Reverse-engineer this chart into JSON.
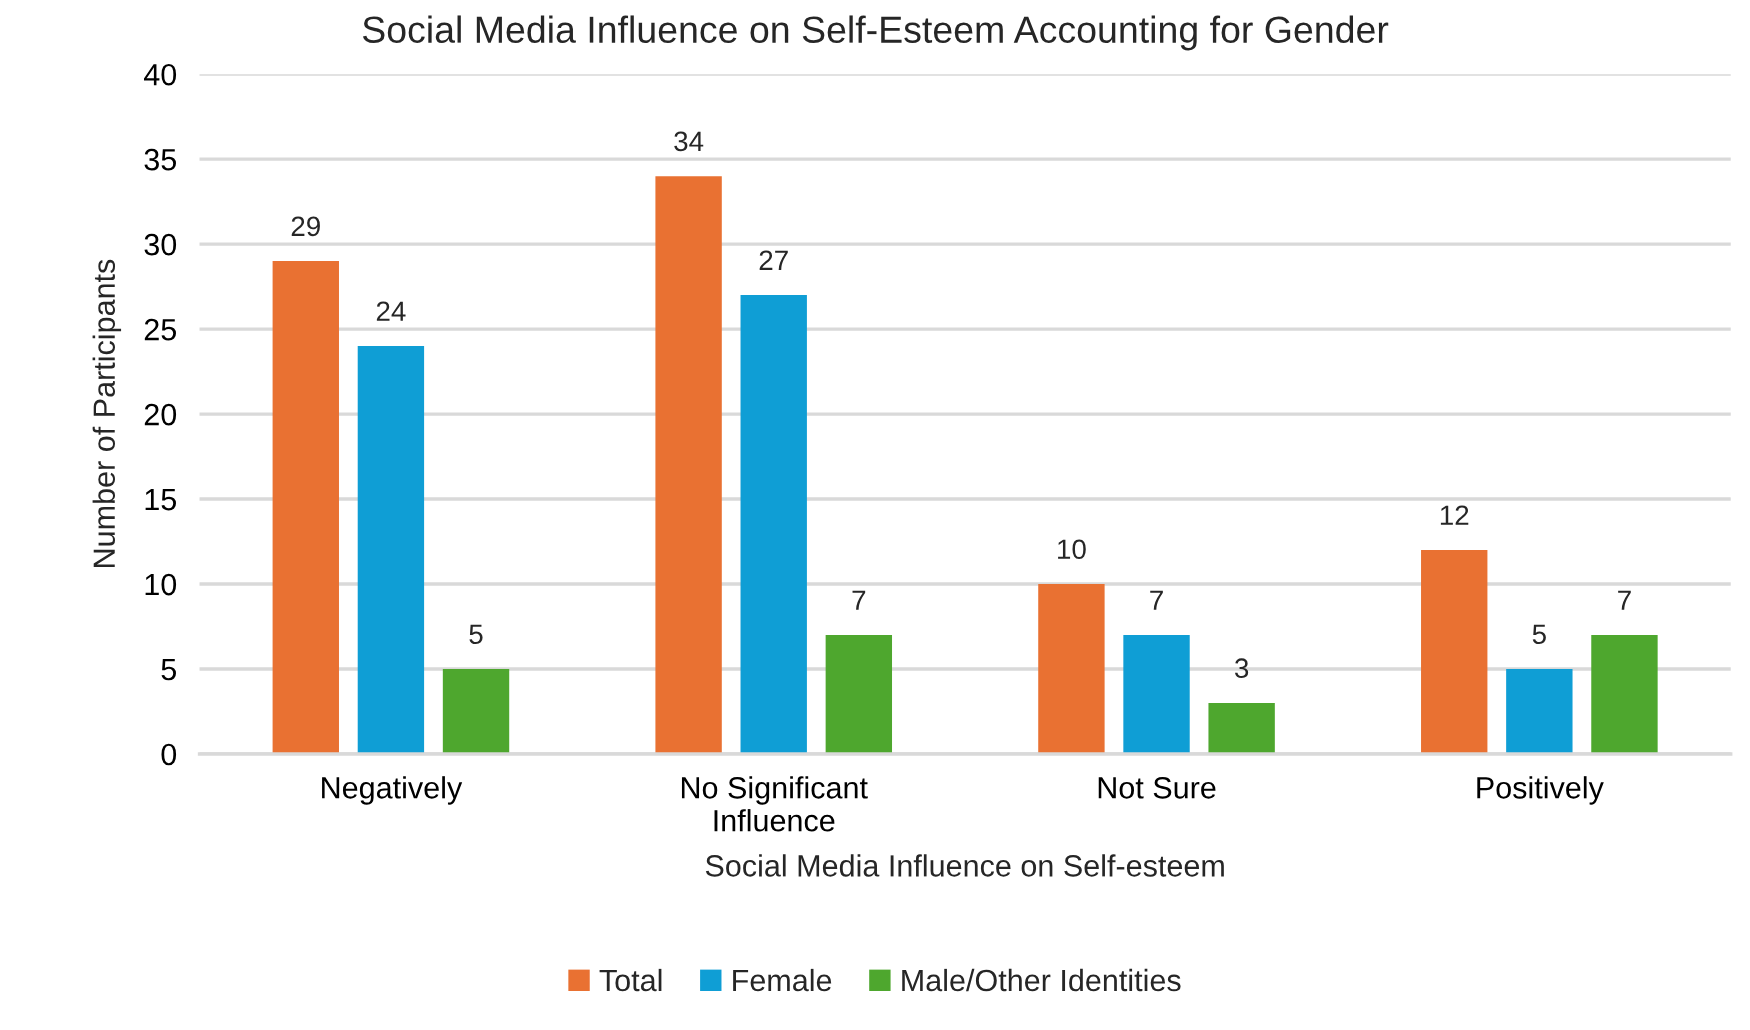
{
  "chart_data": {
    "type": "bar",
    "title": "Social Media Influence on Self-Esteem Accounting for Gender",
    "xlabel": "Social Media Influence on Self-esteem",
    "ylabel": "Number of Participants",
    "categories": [
      "Negatively",
      "No Significant\nInfluence",
      "Not Sure",
      "Positively"
    ],
    "series": [
      {
        "name": "Total",
        "color": "#e97132",
        "values": [
          29,
          34,
          10,
          12
        ]
      },
      {
        "name": "Female",
        "color": "#0f9ed5",
        "values": [
          24,
          27,
          7,
          5
        ]
      },
      {
        "name": "Male/Other Identities",
        "color": "#4ea72e",
        "values": [
          5,
          7,
          3,
          7
        ]
      }
    ],
    "ylim": [
      0,
      40
    ],
    "yticks": [
      0,
      5,
      10,
      15,
      20,
      25,
      30,
      35,
      40
    ],
    "grid": "y",
    "legend": "bottom",
    "data_labels": true
  }
}
